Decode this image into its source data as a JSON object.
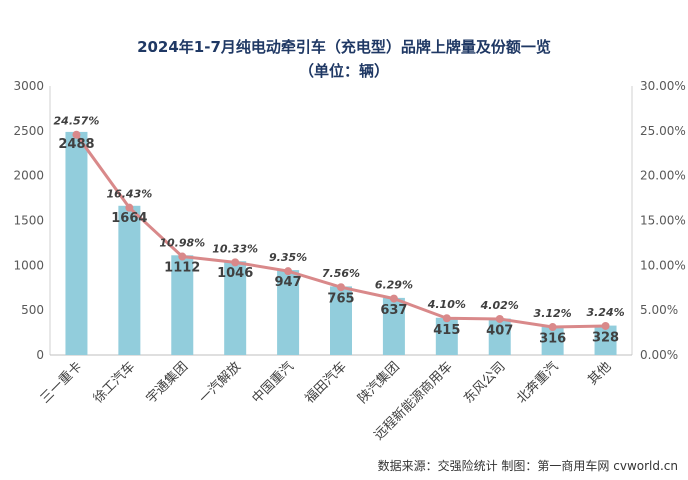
{
  "chart_data": {
    "type": "bar",
    "title": "2024年1-7月纯电动牵引车（充电型）品牌上牌量及份额一览",
    "subtitle": "（单位：辆）",
    "categories": [
      "三一重卡",
      "徐工汽车",
      "宇通集团",
      "一汽解放",
      "中国重汽",
      "福田汽车",
      "陕汽集团",
      "远程新能源商用车",
      "东风公司",
      "北奔重汽",
      "其他"
    ],
    "series": [
      {
        "name": "上牌量",
        "type": "bar",
        "axis": "left",
        "color": "#92cddc",
        "values": [
          2488,
          1664,
          1112,
          1046,
          947,
          765,
          637,
          415,
          407,
          316,
          328
        ],
        "labels": [
          "2488",
          "1664",
          "1112",
          "1046",
          "947",
          "765",
          "637",
          "415",
          "407",
          "316",
          "328"
        ]
      },
      {
        "name": "份额",
        "type": "line",
        "axis": "right",
        "color": "#d9898a",
        "values": [
          24.57,
          16.43,
          10.98,
          10.33,
          9.35,
          7.56,
          6.29,
          4.1,
          4.02,
          3.12,
          3.24
        ],
        "labels": [
          "24.57%",
          "16.43%",
          "10.98%",
          "10.33%",
          "9.35%",
          "7.56%",
          "6.29%",
          "4.10%",
          "4.02%",
          "3.12%",
          "3.24%"
        ]
      }
    ],
    "ylim": [
      0,
      3000
    ],
    "yticks": [
      "0",
      "500",
      "1000",
      "1500",
      "2000",
      "2500",
      "3000"
    ],
    "y2lim": [
      0,
      30
    ],
    "y2ticks": [
      "0.00%",
      "5.00%",
      "10.00%",
      "15.00%",
      "20.00%",
      "25.00%",
      "30.00%"
    ],
    "grid": false
  },
  "footer": "数据来源：交强险统计  制图：第一商用车网 cvworld.cn"
}
